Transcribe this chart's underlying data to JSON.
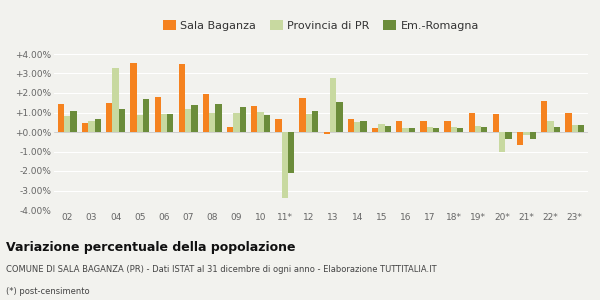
{
  "categories": [
    "02",
    "03",
    "04",
    "05",
    "06",
    "07",
    "08",
    "09",
    "10",
    "11*",
    "12",
    "13",
    "14",
    "15",
    "16",
    "17",
    "18*",
    "19*",
    "20*",
    "21*",
    "22*",
    "23*"
  ],
  "sala_baganza": [
    1.45,
    0.45,
    1.5,
    3.55,
    1.8,
    3.5,
    1.95,
    0.25,
    1.35,
    0.65,
    1.75,
    -0.1,
    0.65,
    0.2,
    0.55,
    0.55,
    0.55,
    1.0,
    0.9,
    -0.65,
    1.6,
    0.95
  ],
  "provincia_pr": [
    0.8,
    0.55,
    3.3,
    0.85,
    0.9,
    1.2,
    1.0,
    1.0,
    1.05,
    -3.4,
    0.9,
    2.75,
    0.5,
    0.4,
    0.2,
    0.25,
    0.25,
    0.3,
    -1.0,
    -0.15,
    0.55,
    0.35
  ],
  "em_romagna": [
    1.1,
    0.65,
    1.2,
    1.7,
    0.9,
    1.4,
    1.45,
    1.3,
    0.85,
    -2.1,
    1.1,
    1.55,
    0.55,
    0.3,
    0.2,
    0.2,
    0.2,
    0.25,
    -0.35,
    -0.35,
    0.25,
    0.35
  ],
  "color_sala": "#f5821f",
  "color_pr": "#c8d9a0",
  "color_em": "#6b8c3a",
  "title": "Variazione percentuale della popolazione",
  "subtitle2": "COMUNE DI SALA BAGANZA (PR) - Dati ISTAT al 31 dicembre di ogni anno - Elaborazione TUTTITALIA.IT",
  "subtitle3": "(*) post-censimento",
  "ylim": [
    -4.0,
    4.0
  ],
  "yticks": [
    -4.0,
    -3.0,
    -2.0,
    -1.0,
    0.0,
    1.0,
    2.0,
    3.0,
    4.0
  ],
  "legend_labels": [
    "Sala Baganza",
    "Provincia di PR",
    "Em.-Romagna"
  ],
  "bg_color": "#f2f2ee"
}
